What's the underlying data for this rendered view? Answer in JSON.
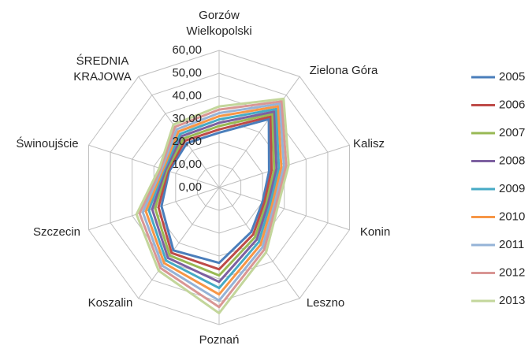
{
  "chart_data": {
    "type": "radar",
    "categories": [
      "Gorzów Wielkopolski",
      "Zielona Góra",
      "Kalisz",
      "Konin",
      "Leszno",
      "Poznań",
      "Koszalin",
      "Szczecin",
      "Świnoujście",
      "ŚREDNIA KRAJOWA"
    ],
    "ylim": [
      0,
      60
    ],
    "yticks": [
      {
        "value": 0,
        "label": "0,00"
      },
      {
        "value": 10,
        "label": "10,00"
      },
      {
        "value": 20,
        "label": "20,00"
      },
      {
        "value": 30,
        "label": "30,00"
      },
      {
        "value": 40,
        "label": "40,00"
      },
      {
        "value": 50,
        "label": "50,00"
      },
      {
        "value": 60,
        "label": "60,00"
      }
    ],
    "grid": true,
    "legend": "right",
    "series": [
      {
        "name": "2005",
        "color": "#4a7ebb",
        "values": [
          24,
          37,
          23,
          20,
          24,
          33,
          34,
          26.5,
          23,
          24
        ]
      },
      {
        "name": "2006",
        "color": "#be4b48",
        "values": [
          25.4,
          38.4,
          24.1,
          20.9,
          25.4,
          35.8,
          35.4,
          27.9,
          23.6,
          25.3
        ]
      },
      {
        "name": "2007",
        "color": "#98b954",
        "values": [
          26.9,
          39.8,
          25.3,
          21.8,
          26.8,
          38.5,
          36.8,
          29.4,
          24.1,
          26.5
        ]
      },
      {
        "name": "2008",
        "color": "#7d60a0",
        "values": [
          28.3,
          41.1,
          26.4,
          22.6,
          28.1,
          41.3,
          38.1,
          30.8,
          24.7,
          27.8
        ]
      },
      {
        "name": "2009",
        "color": "#46aac5",
        "values": [
          29.8,
          42.5,
          27.5,
          23.5,
          29.5,
          44,
          39.5,
          32.3,
          25.3,
          29
        ]
      },
      {
        "name": "2010",
        "color": "#f79646",
        "values": [
          31.2,
          43.9,
          28.6,
          24.4,
          30.9,
          46.8,
          40.9,
          33.7,
          25.8,
          30.3
        ]
      },
      {
        "name": "2011",
        "color": "#95b3d7",
        "values": [
          32.6,
          45.3,
          29.8,
          25.3,
          32.3,
          49.5,
          42.3,
          35.1,
          26.4,
          31.5
        ]
      },
      {
        "name": "2012",
        "color": "#d99694",
        "values": [
          34.1,
          46.6,
          30.9,
          26.1,
          33.6,
          52.3,
          43.6,
          36.6,
          26.9,
          32.8
        ]
      },
      {
        "name": "2013",
        "color": "#c3d69b",
        "values": [
          35.5,
          48,
          32,
          27,
          35,
          55,
          45,
          38,
          27.5,
          34
        ]
      }
    ]
  }
}
